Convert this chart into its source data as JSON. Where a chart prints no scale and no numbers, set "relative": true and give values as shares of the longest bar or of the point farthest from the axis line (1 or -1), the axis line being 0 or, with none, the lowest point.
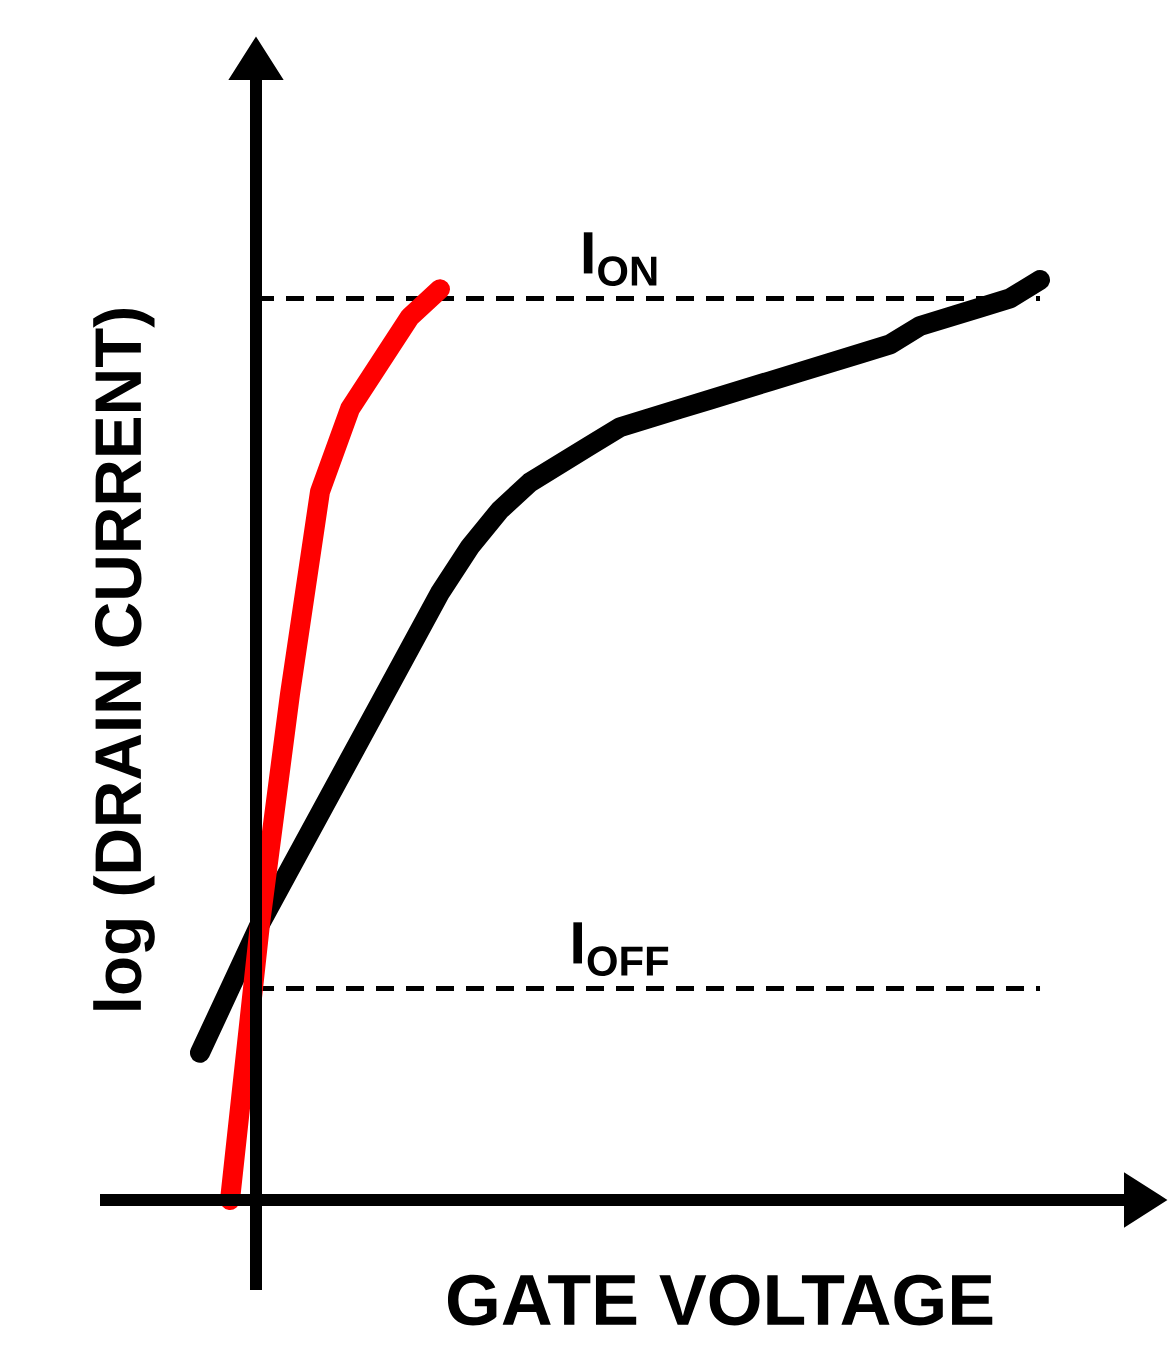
{
  "chart_data": {
    "type": "line",
    "relative": true,
    "xlabel": "GATE VOLTAGE",
    "ylabel": "log (DRAIN CURRENT)",
    "categories": [
      null,
      null,
      null,
      null,
      null,
      null,
      null,
      null,
      null,
      null,
      null,
      null,
      null,
      null,
      null,
      null,
      null,
      null,
      null,
      null,
      null,
      null,
      null,
      null,
      null,
      null,
      null,
      null,
      null
    ],
    "series": [
      {
        "color": "#000000",
        "values": [
          0.16,
          0.23,
          0.3,
          0.36,
          0.42,
          0.48,
          0.54,
          0.6,
          0.66,
          0.71,
          0.75,
          0.78,
          0.8,
          0.82,
          0.84,
          0.85,
          0.86,
          0.87,
          0.88,
          0.89,
          0.9,
          0.91,
          0.92,
          0.93,
          0.95,
          0.96,
          0.97,
          0.98,
          1
        ]
      },
      {
        "color": "#ff0000",
        "values": [
          null,
          0,
          0.3,
          0.55,
          0.77,
          0.86,
          0.91,
          0.96,
          0.99,
          null,
          null,
          null,
          null,
          null,
          null,
          null,
          null,
          null,
          null,
          null,
          null,
          null,
          null,
          null,
          null,
          null,
          null,
          null,
          null
        ]
      }
    ],
    "ref_lines": [
      {
        "axis": "y",
        "value": 0.98,
        "label": "I$_{ON}$",
        "color": "#000000",
        "line_style": "dashed"
      },
      {
        "axis": "y",
        "value": 0.23,
        "label": "I$_{OFF}$",
        "color": "#000000",
        "line_style": "dashed"
      }
    ],
    "legend": false,
    "marker": "none",
    "line_style": "solid"
  }
}
